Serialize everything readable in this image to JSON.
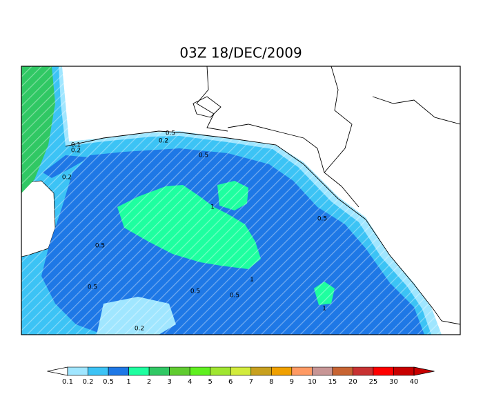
{
  "title": "03Z 18/DEC/2009",
  "contour_labels": [
    0.1,
    0.2,
    0.2,
    0.5,
    0.5,
    0.2,
    0.5,
    1,
    0.5,
    0.5,
    0.5,
    0.5,
    0.2,
    1,
    1
  ],
  "colorbar": {
    "levels": [
      0.1,
      0.2,
      0.5,
      1,
      2,
      3,
      4,
      5,
      6,
      7,
      8,
      9,
      10,
      15,
      20,
      25,
      30,
      40
    ],
    "colors": [
      "#ffffff",
      "#a0e6ff",
      "#3cc3f5",
      "#1e78e6",
      "#1effa0",
      "#30c864",
      "#60cc30",
      "#60f020",
      "#a0e630",
      "#d2ec3c",
      "#c8a01e",
      "#f0a000",
      "#ff9a64",
      "#c89696",
      "#c86432",
      "#c83232",
      "#ff0000",
      "#c80000"
    ]
  }
}
